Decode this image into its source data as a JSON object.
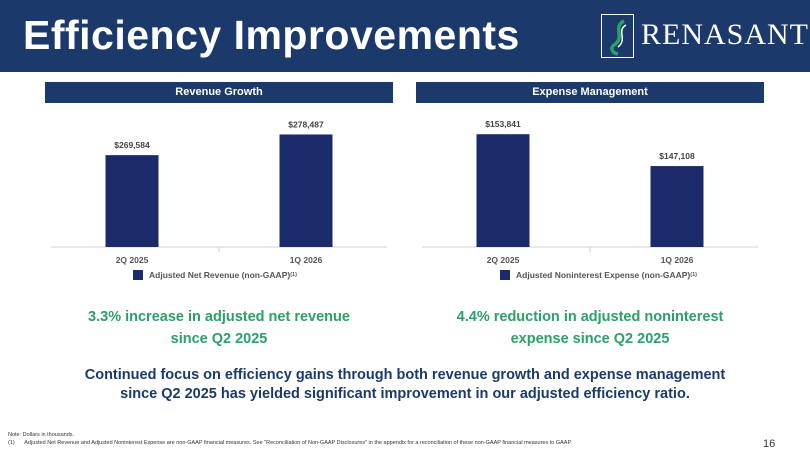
{
  "header": {
    "title": "Efficiency Improvements",
    "logo_text": "RENASANT"
  },
  "revenue": {
    "banner": "Revenue Growth",
    "legend": "Adjusted Net Revenue (non-GAAP)",
    "legend_sup": "(1)",
    "callout_line1": "3.3% increase in adjusted net revenue",
    "callout_line2": "since Q2 2025"
  },
  "expense": {
    "banner": "Expense Management",
    "legend": "Adjusted Noninterest Expense (non-GAAP)",
    "legend_sup": "(1)",
    "callout_line1": "4.4% reduction in adjusted noninterest",
    "callout_line2": "expense since Q2 2025"
  },
  "summary": {
    "line1": "Continued focus on efficiency gains through both revenue growth and expense management",
    "line2": "since Q2 2025 has yielded significant improvement in our adjusted efficiency ratio."
  },
  "footnotes": {
    "note": "Note: Dollars in thousands.",
    "marker": "(1)",
    "text": "Adjusted Net Revenue and Adjusted Noninterest Expense are non-GAAP financial measures. See \"Reconciliation of Non-GAAP Disclosures\" in the appendix for a reconciliation of these non-GAAP financial measures to GAAP."
  },
  "page_number": "16",
  "colors": {
    "navy": "#1b3a6b",
    "bar": "#1b2a6b",
    "green": "#2aa06a"
  },
  "chart_data": [
    {
      "type": "bar",
      "title": "Revenue Growth",
      "categories": [
        "2Q 2025",
        "1Q 2026"
      ],
      "series": [
        {
          "name": "Adjusted Net Revenue (non-GAAP)",
          "values": [
            269584,
            278487
          ]
        }
      ],
      "data_labels": [
        "$269,584",
        "$278,487"
      ],
      "ylim": [
        230000,
        283000
      ],
      "legend": "bottom",
      "grid": false
    },
    {
      "type": "bar",
      "title": "Expense Management",
      "categories": [
        "2Q 2025",
        "1Q 2026"
      ],
      "series": [
        {
          "name": "Adjusted Noninterest Expense (non-GAAP)",
          "values": [
            153841,
            147108
          ]
        }
      ],
      "data_labels": [
        "$153,841",
        "$147,108"
      ],
      "ylim": [
        130000,
        156000
      ],
      "legend": "bottom",
      "grid": false
    }
  ]
}
